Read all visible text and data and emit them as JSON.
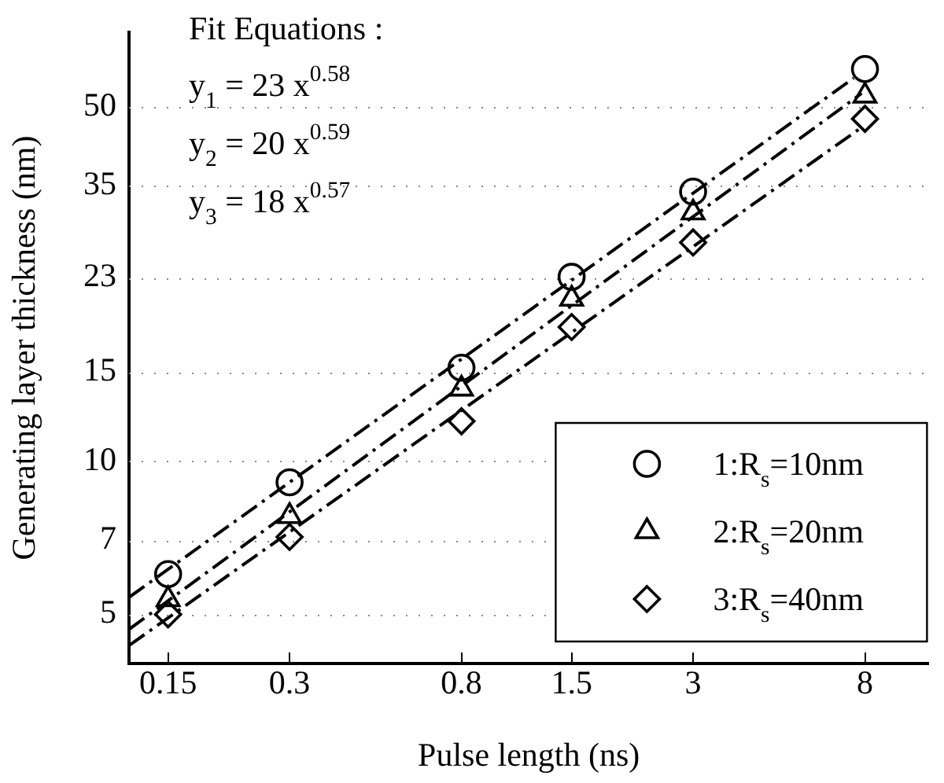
{
  "chart_data": {
    "type": "scatter",
    "xlabel": "Pulse length (ns)",
    "ylabel": "Generating layer thickness (nm)",
    "log": "xy",
    "grid": "y",
    "legend": "bottom right",
    "xlim": [
      0.12,
      11.5
    ],
    "xticks": [
      0.15,
      0.3,
      0.8,
      1.5,
      3,
      8
    ],
    "ylim": [
      4,
      70
    ],
    "yticks": [
      5,
      7,
      10,
      15,
      23,
      35,
      50
    ],
    "x": [
      0.15,
      0.3,
      0.8,
      1.5,
      3,
      8
    ],
    "series": [
      {
        "name": "1:R$_{s}$=10nm",
        "color": "#000000",
        "marker": "circle",
        "values": [
          6.0,
          9.1,
          15.3,
          23.1,
          34.0,
          59.3
        ]
      },
      {
        "name": "2:R$_{s}$=20nm",
        "color": "#000000",
        "marker": "triangle",
        "values": [
          5.35,
          7.8,
          13.9,
          20.9,
          30.9,
          52.5
        ]
      },
      {
        "name": "3:R$_{s}$=40nm",
        "color": "#000000",
        "marker": "diamond",
        "values": [
          5.0,
          7.1,
          12.0,
          18.4,
          27.0,
          47.3
        ]
      },
      {
        "type": "line",
        "color": "#000000",
        "marker": "none",
        "line_style": "dashed",
        "x": [
          0.12,
          7.5
        ],
        "values": [
          5.4,
          56.9
        ]
      },
      {
        "type": "line",
        "color": "#000000",
        "marker": "none",
        "line_style": "dashed",
        "x": [
          0.12,
          7.85
        ],
        "values": [
          4.67,
          53.1
        ]
      },
      {
        "type": "line",
        "color": "#000000",
        "marker": "none",
        "line_style": "dashed",
        "x": [
          0.12,
          7.85
        ],
        "values": [
          4.34,
          45.5
        ]
      }
    ],
    "annotations": [
      "Fit Equations :",
      "y$_{1}$ = 23 x$^{0.58}$",
      "y$_{2}$ = 20 x$^{0.59}$",
      "y$_{3}$ = 18 x$^{0.57}$"
    ]
  }
}
